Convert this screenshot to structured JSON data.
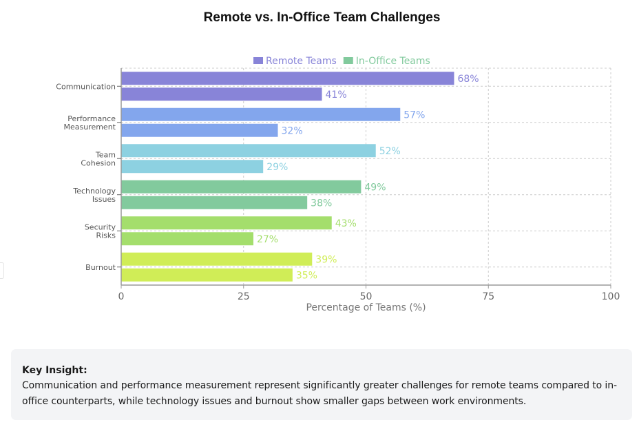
{
  "page": {
    "title": "Remote vs. In-Office Team Challenges"
  },
  "chart_data": {
    "type": "bar",
    "orientation": "horizontal",
    "title": "Remote vs. In-Office Team Challenges",
    "xlabel": "Percentage of Teams (%)",
    "ylabel": "",
    "xlim": [
      0,
      100
    ],
    "xticks": [
      0,
      25,
      50,
      75,
      100
    ],
    "grid": true,
    "legend_position": "top-center",
    "categories": [
      [
        "Communication"
      ],
      [
        "Performance",
        "Measurement"
      ],
      [
        "Team",
        "Cohesion"
      ],
      [
        "Technology",
        "Issues"
      ],
      [
        "Security",
        "Risks"
      ],
      [
        "Burnout"
      ]
    ],
    "category_names": [
      "Communication",
      "Performance Measurement",
      "Team Cohesion",
      "Technology Issues",
      "Security Risks",
      "Burnout"
    ],
    "series": [
      {
        "name": "Remote Teams",
        "values": [
          68,
          57,
          52,
          49,
          43,
          39
        ],
        "legend_color": "#8884d8"
      },
      {
        "name": "In-Office Teams",
        "values": [
          41,
          32,
          29,
          38,
          27,
          35
        ],
        "legend_color": "#82ca9d"
      }
    ],
    "category_colors": [
      "#8884d8",
      "#83a6ed",
      "#8dd1e1",
      "#82ca9d",
      "#a4de6c",
      "#d0ed57"
    ],
    "value_suffix": "%"
  },
  "insight": {
    "title": "Key Insight:",
    "text": "Communication and performance measurement represent significantly greater challenges for remote teams compared to in-office counterparts, while technology issues and burnout show smaller gaps between work environments."
  }
}
